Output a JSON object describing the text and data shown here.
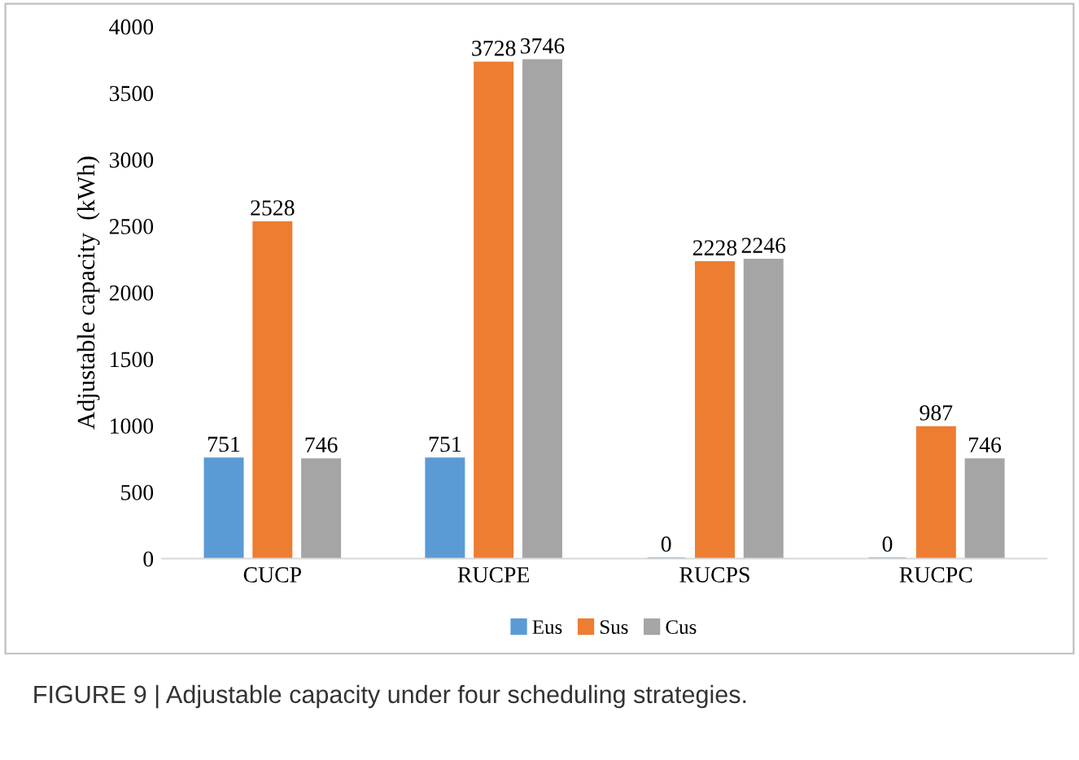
{
  "chart_data": {
    "type": "bar",
    "ylabel": "Adjustable capacity  (kWh)",
    "categories": [
      "CUCP",
      "RUCPE",
      "RUCPS",
      "RUCPC"
    ],
    "series": [
      {
        "name": "Eus",
        "color": "#5b9bd5",
        "values": [
          751,
          751,
          0,
          0
        ]
      },
      {
        "name": "Sus",
        "color": "#ed7d31",
        "values": [
          2528,
          3728,
          2228,
          987
        ]
      },
      {
        "name": "Cus",
        "color": "#a5a5a5",
        "values": [
          746,
          3746,
          2246,
          746
        ]
      }
    ],
    "ylim": [
      0,
      4000
    ],
    "yticks": [
      0,
      500,
      1000,
      1500,
      2000,
      2500,
      3000,
      3500,
      4000
    ],
    "grid": false,
    "legend": "bottom",
    "data_labels": true,
    "annotations": [
      "FIGURE 9 | Adjustable capacity under four scheduling strategies."
    ]
  }
}
